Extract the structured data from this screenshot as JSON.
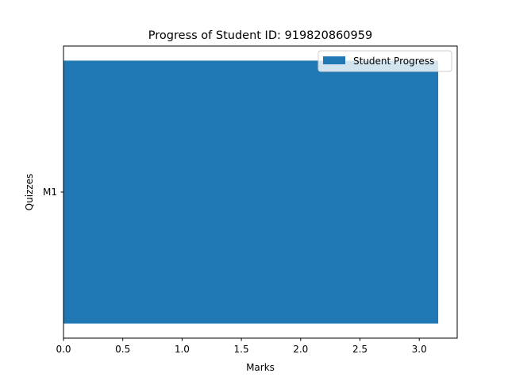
{
  "chart_data": {
    "type": "bar",
    "orientation": "horizontal",
    "title": "Progress of Student ID: 919820860959",
    "xlabel": "Marks",
    "ylabel": "Quizzes",
    "categories": [
      "M1"
    ],
    "series": [
      {
        "name": "Student Progress",
        "values": [
          3.16
        ],
        "color": "#1f77b4"
      }
    ],
    "xlim": [
      0,
      3.32
    ],
    "xticks": [
      0.0,
      0.5,
      1.0,
      1.5,
      2.0,
      2.5,
      3.0
    ],
    "xtick_labels": [
      "0.0",
      "0.5",
      "1.0",
      "1.5",
      "2.0",
      "2.5",
      "3.0"
    ],
    "grid": false,
    "legend_position": "top-right"
  }
}
